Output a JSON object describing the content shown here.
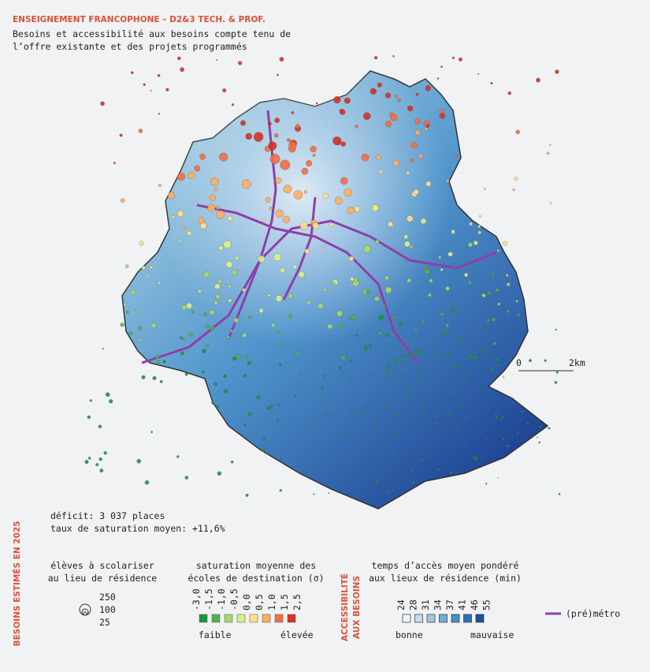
{
  "header": {
    "title": "ENSEIGNEMENT FRANCOPHONE – D2&3 TECH. & PROF.",
    "subtitle": [
      "Besoins et accessibilité aux besoins compte tenu de",
      "l’offre existante et des projets programmés"
    ]
  },
  "scale_bar": {
    "start": "0",
    "end": "2km"
  },
  "summary": {
    "deficit": "déficit: 3 037 places",
    "saturation_rate": "taux de saturation moyen: +11,6%"
  },
  "side_labels": {
    "needs": "BESOINS ESTIMÉS EN 2025",
    "accessibility": [
      "ACCESSIBILITÉ",
      "AUX BESOINS"
    ]
  },
  "legend_size": {
    "title": [
      "élèves à scolariser",
      "au lieu de résidence"
    ],
    "values": [
      "250",
      "100",
      "25"
    ]
  },
  "legend_saturation": {
    "title": [
      "saturation moyenne des",
      "écoles de destination (σ)"
    ],
    "ticks": [
      "-3,0",
      "-1,5",
      "-1,0",
      "-0,5",
      "0,0",
      "0,5",
      "1,0",
      "1,5",
      "2,5"
    ],
    "colors": [
      "#1a9641",
      "#52b151",
      "#a6d96a",
      "#d9ef8b",
      "#fee08b",
      "#fdae61",
      "#f46d43",
      "#d73027"
    ],
    "low": "faible",
    "high": "élevée"
  },
  "legend_time": {
    "title": [
      "temps d’accès moyen pondéré",
      "aux lieux de résidence (min)"
    ],
    "ticks": [
      "24",
      "28",
      "31",
      "34",
      "37",
      "41",
      "46",
      "55"
    ],
    "colors": [
      "#eef4fa",
      "#c6dbef",
      "#9ecae1",
      "#6baed6",
      "#4292c6",
      "#2d6fb8",
      "#1f4e9c"
    ],
    "low": "bonne",
    "high": "mauvaise"
  },
  "legend_metro": {
    "label": "(pré)métro",
    "color": "#8e3fa8"
  }
}
